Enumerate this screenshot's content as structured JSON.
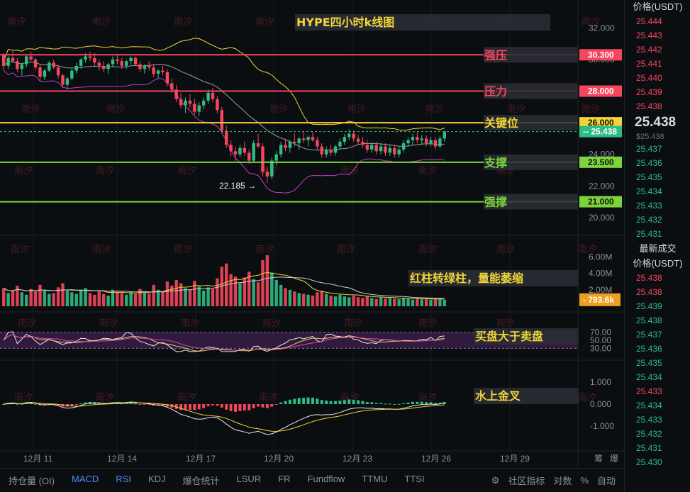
{
  "chart_data": {
    "type": "candlestick",
    "title": "HYPE四小时k线图",
    "price_axis": {
      "ticks": [
        "32.000",
        "30.000",
        "28.000",
        "26.000",
        "24.000",
        "22.000",
        "20.000"
      ],
      "ylim": [
        19.5,
        32.6
      ]
    },
    "x_axis_ticks": [
      "12月 11",
      "12月 14",
      "12月 17",
      "12月 20",
      "12月 23",
      "12月 26",
      "12月 29"
    ],
    "levels": [
      {
        "name": "强压",
        "value": 30.3,
        "label": "30.300",
        "color": "#f6465d"
      },
      {
        "name": "压力",
        "value": 28.0,
        "label": "28.000",
        "color": "#f6465d"
      },
      {
        "name": "关键位",
        "value": 26.0,
        "label": "26.000",
        "color": "#f0d438"
      },
      {
        "name": "支撑",
        "value": 23.5,
        "label": "23.500",
        "color": "#7cd33b"
      },
      {
        "name": "强撑",
        "value": 21.0,
        "label": "21.000",
        "color": "#7cd33b"
      }
    ],
    "last_price": {
      "value": 25.438,
      "label": "25.438"
    },
    "low_marker": {
      "value": 22.185,
      "label": "22.185 →"
    },
    "candles": [
      [
        30.3,
        30.4,
        29.3,
        29.6
      ],
      [
        29.6,
        30.2,
        29.4,
        30.1
      ],
      [
        30.1,
        30.6,
        29.8,
        29.9
      ],
      [
        29.9,
        30.1,
        29.2,
        29.4
      ],
      [
        29.4,
        29.8,
        29.0,
        29.7
      ],
      [
        29.7,
        30.3,
        29.5,
        30.2
      ],
      [
        30.2,
        30.5,
        29.9,
        30.0
      ],
      [
        30.0,
        30.1,
        29.3,
        29.5
      ],
      [
        29.5,
        29.7,
        28.6,
        28.9
      ],
      [
        28.9,
        29.4,
        28.7,
        29.3
      ],
      [
        29.3,
        29.9,
        29.2,
        29.8
      ],
      [
        29.8,
        30.0,
        29.4,
        29.5
      ],
      [
        29.5,
        29.6,
        28.8,
        29.0
      ],
      [
        29.0,
        29.1,
        28.2,
        28.4
      ],
      [
        28.4,
        28.9,
        28.1,
        28.8
      ],
      [
        28.8,
        29.4,
        28.7,
        29.3
      ],
      [
        29.3,
        29.8,
        29.1,
        29.6
      ],
      [
        29.6,
        30.1,
        29.4,
        30.0
      ],
      [
        30.0,
        30.4,
        29.8,
        30.2
      ],
      [
        30.2,
        30.5,
        29.9,
        30.1
      ],
      [
        30.1,
        30.4,
        29.6,
        29.8
      ],
      [
        29.8,
        30.0,
        29.3,
        29.6
      ],
      [
        29.6,
        29.9,
        29.2,
        29.4
      ],
      [
        29.4,
        29.8,
        29.1,
        29.7
      ],
      [
        29.7,
        30.2,
        29.5,
        30.0
      ],
      [
        30.0,
        30.3,
        29.7,
        29.9
      ],
      [
        29.9,
        30.1,
        29.4,
        29.6
      ],
      [
        29.6,
        30.0,
        29.4,
        29.9
      ],
      [
        29.9,
        30.2,
        29.7,
        30.1
      ],
      [
        30.1,
        30.2,
        29.6,
        29.7
      ],
      [
        29.7,
        29.9,
        29.2,
        29.4
      ],
      [
        29.4,
        29.7,
        29.1,
        29.6
      ],
      [
        29.6,
        29.9,
        29.3,
        29.5
      ],
      [
        29.5,
        29.7,
        28.9,
        29.1
      ],
      [
        29.1,
        29.4,
        28.8,
        29.3
      ],
      [
        29.3,
        29.6,
        29.0,
        29.2
      ],
      [
        29.2,
        29.4,
        28.3,
        28.5
      ],
      [
        28.5,
        28.8,
        27.9,
        28.1
      ],
      [
        28.1,
        28.4,
        27.3,
        27.5
      ],
      [
        27.5,
        27.9,
        26.9,
        27.1
      ],
      [
        27.1,
        27.6,
        26.6,
        27.4
      ],
      [
        27.4,
        27.8,
        27.0,
        27.2
      ],
      [
        27.2,
        27.5,
        26.5,
        26.7
      ],
      [
        26.7,
        27.3,
        26.4,
        27.1
      ],
      [
        27.1,
        27.6,
        26.9,
        27.4
      ],
      [
        27.4,
        28.1,
        27.2,
        27.9
      ],
      [
        27.9,
        28.2,
        27.3,
        27.5
      ],
      [
        27.5,
        27.7,
        26.6,
        26.8
      ],
      [
        26.8,
        27.0,
        25.3,
        25.5
      ],
      [
        25.5,
        25.8,
        24.4,
        24.6
      ],
      [
        24.6,
        24.9,
        23.9,
        24.2
      ],
      [
        24.2,
        24.5,
        23.6,
        24.0
      ],
      [
        24.0,
        24.6,
        23.8,
        24.4
      ],
      [
        24.4,
        24.8,
        23.9,
        24.1
      ],
      [
        24.1,
        24.3,
        23.4,
        23.6
      ],
      [
        23.6,
        24.9,
        23.5,
        24.7
      ],
      [
        24.7,
        25.3,
        24.4,
        24.5
      ],
      [
        24.5,
        24.7,
        22.6,
        22.9
      ],
      [
        22.9,
        23.2,
        22.185,
        22.6
      ],
      [
        22.6,
        23.8,
        22.4,
        23.6
      ],
      [
        23.6,
        24.2,
        23.3,
        24.0
      ],
      [
        24.0,
        24.8,
        23.8,
        24.6
      ],
      [
        24.6,
        25.0,
        24.2,
        24.4
      ],
      [
        24.4,
        24.9,
        24.1,
        24.8
      ],
      [
        24.8,
        25.3,
        24.5,
        24.7
      ],
      [
        24.7,
        25.1,
        24.3,
        25.0
      ],
      [
        25.0,
        25.4,
        24.7,
        24.9
      ],
      [
        24.9,
        25.2,
        24.5,
        25.1
      ],
      [
        25.1,
        25.4,
        24.8,
        24.9
      ],
      [
        24.9,
        25.1,
        24.3,
        24.5
      ],
      [
        24.5,
        24.7,
        23.8,
        24.0
      ],
      [
        24.0,
        24.5,
        23.8,
        24.3
      ],
      [
        24.3,
        24.6,
        23.9,
        24.1
      ],
      [
        24.1,
        24.6,
        23.9,
        24.5
      ],
      [
        24.5,
        25.0,
        24.3,
        24.8
      ],
      [
        24.8,
        25.3,
        24.6,
        25.1
      ],
      [
        25.1,
        25.6,
        24.9,
        25.3
      ],
      [
        25.3,
        25.5,
        24.8,
        25.0
      ],
      [
        25.0,
        25.2,
        24.6,
        24.8
      ],
      [
        24.8,
        25.1,
        24.4,
        24.6
      ],
      [
        24.6,
        24.9,
        24.1,
        24.3
      ],
      [
        24.3,
        24.8,
        24.1,
        24.6
      ],
      [
        24.6,
        24.8,
        24.0,
        24.2
      ],
      [
        24.2,
        24.7,
        24.0,
        24.5
      ],
      [
        24.5,
        24.7,
        23.9,
        24.1
      ],
      [
        24.1,
        24.6,
        23.9,
        24.4
      ],
      [
        24.4,
        24.6,
        23.8,
        24.0
      ],
      [
        24.0,
        24.5,
        23.8,
        24.3
      ],
      [
        24.3,
        24.9,
        24.1,
        24.7
      ],
      [
        24.7,
        25.1,
        24.5,
        24.9
      ],
      [
        24.9,
        25.3,
        24.6,
        25.1
      ],
      [
        25.1,
        25.4,
        24.7,
        24.9
      ],
      [
        24.9,
        25.2,
        24.6,
        25.0
      ],
      [
        25.0,
        25.2,
        24.5,
        24.7
      ],
      [
        24.7,
        25.1,
        24.5,
        24.9
      ],
      [
        24.9,
        25.1,
        24.3,
        24.5
      ],
      [
        24.5,
        25.2,
        24.4,
        25.0
      ],
      [
        25.0,
        25.5,
        24.8,
        25.438
      ]
    ],
    "volume_panel": {
      "ticks": [
        "6.00M",
        "4.00M",
        "2.00M"
      ],
      "ylim": [
        0,
        7.5
      ],
      "last_label": "793.6k",
      "values": [
        2.2,
        1.6,
        1.9,
        2.5,
        1.7,
        1.4,
        2.1,
        1.8,
        2.6,
        1.9,
        1.5,
        1.6,
        2.3,
        2.8,
        1.9,
        1.7,
        1.5,
        1.9,
        2.2,
        1.6,
        1.4,
        1.8,
        1.5,
        1.3,
        2.0,
        1.7,
        1.6,
        1.4,
        1.8,
        1.5,
        2.1,
        1.7,
        1.5,
        2.6,
        2.0,
        1.8,
        3.0,
        2.5,
        3.2,
        2.8,
        2.2,
        2.0,
        3.1,
        2.4,
        1.9,
        2.3,
        2.1,
        3.4,
        4.8,
        5.2,
        3.9,
        3.6,
        2.8,
        3.5,
        4.2,
        3.3,
        2.9,
        5.6,
        6.2,
        4.1,
        3.2,
        2.6,
        2.2,
        2.0,
        1.8,
        1.6,
        1.5,
        1.4,
        1.3,
        1.7,
        1.9,
        1.5,
        1.3,
        1.2,
        1.4,
        1.2,
        1.1,
        1.3,
        1.1,
        1.0,
        1.2,
        1.0,
        0.9,
        1.1,
        0.95,
        1.0,
        0.9,
        0.85,
        1.0,
        0.9,
        0.8,
        0.95,
        0.85,
        0.9,
        0.8,
        0.85,
        0.9,
        0.79
      ]
    },
    "rsi_panel": {
      "ticks": [
        "70.00",
        "50.00",
        "30.00"
      ],
      "ylim": [
        20,
        80
      ]
    },
    "macd_panel": {
      "ticks": [
        "1.000",
        "0.000",
        "-1.000"
      ],
      "ylim": [
        -1.4,
        1.4
      ]
    },
    "annotations": {
      "volume": "红柱转绿柱，量能萎缩",
      "rsi": "买盘大于卖盘",
      "macd": "水上金叉"
    },
    "watermark": "南汐"
  },
  "toolbar": {
    "tabs": [
      {
        "label": "持仓量 (OI)",
        "active": false
      },
      {
        "label": "MACD",
        "active": true
      },
      {
        "label": "RSI",
        "active": true
      },
      {
        "label": "KDJ",
        "active": false
      },
      {
        "label": "爆仓统计",
        "active": false
      },
      {
        "label": "LSUR",
        "active": false
      },
      {
        "label": "FR",
        "active": false
      },
      {
        "label": "Fundflow",
        "active": false
      },
      {
        "label": "TTMU",
        "active": false
      },
      {
        "label": "TTSI",
        "active": false
      }
    ],
    "community_label": "社区指标",
    "log_label": "对数",
    "percent_label": "%",
    "auto_label": "自动",
    "corner_a": "筹",
    "corner_b": "爆"
  },
  "orderbook": {
    "header": "价格(USDT)",
    "asks": [
      "25.444",
      "25.443",
      "25.442",
      "25.441",
      "25.440",
      "25.439",
      "25.438"
    ],
    "last_price": "25.438",
    "last_price_sub": "$25.438",
    "bids": [
      "25.437",
      "25.436",
      "25.435",
      "25.434",
      "25.433",
      "25.432",
      "25.431"
    ],
    "trades_title": "最新成交",
    "trades_header": "价格(USDT)",
    "trades": [
      {
        "price": "25.438",
        "side": "sell"
      },
      {
        "price": "25.438",
        "side": "sell"
      },
      {
        "price": "25.439",
        "side": "buy"
      },
      {
        "price": "25.438",
        "side": "buy"
      },
      {
        "price": "25.437",
        "side": "buy"
      },
      {
        "price": "25.436",
        "side": "buy"
      },
      {
        "price": "25.435",
        "side": "buy"
      },
      {
        "price": "25.434",
        "side": "buy"
      },
      {
        "price": "25.433",
        "side": "sell"
      },
      {
        "price": "25.434",
        "side": "buy"
      },
      {
        "price": "25.433",
        "side": "buy"
      },
      {
        "price": "25.432",
        "side": "buy"
      },
      {
        "price": "25.431",
        "side": "buy"
      },
      {
        "price": "25.430",
        "side": "buy"
      }
    ]
  }
}
